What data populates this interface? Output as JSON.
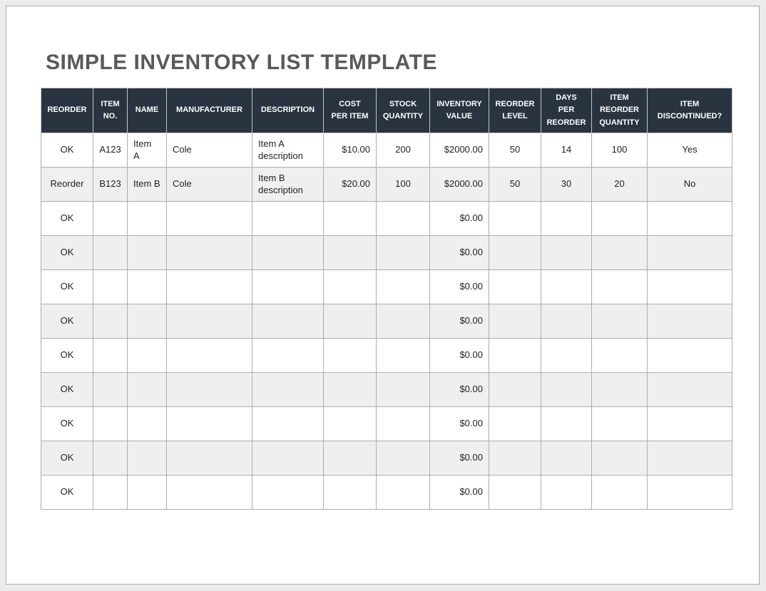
{
  "page": {
    "title": "SIMPLE INVENTORY LIST TEMPLATE"
  },
  "colors": {
    "header_bg": "#2a3441",
    "header_text": "#ffffff",
    "row_stripe": "#efefef",
    "cell_border": "#adadad",
    "title_text": "#595959"
  },
  "table": {
    "columns": [
      {
        "id": "reorder",
        "label": "REORDER",
        "align": "center"
      },
      {
        "id": "item-no",
        "label": "ITEM\nNO.",
        "align": "center"
      },
      {
        "id": "name",
        "label": "NAME",
        "align": "left"
      },
      {
        "id": "manufacturer",
        "label": "MANUFACTURER",
        "align": "left"
      },
      {
        "id": "description",
        "label": "DESCRIPTION",
        "align": "left"
      },
      {
        "id": "cost-per-item",
        "label": "COST\nPER ITEM",
        "align": "right"
      },
      {
        "id": "stock-quantity",
        "label": "STOCK\nQUANTITY",
        "align": "center"
      },
      {
        "id": "inventory-value",
        "label": "INVENTORY\nVALUE",
        "align": "right"
      },
      {
        "id": "reorder-level",
        "label": "REORDER\nLEVEL",
        "align": "center"
      },
      {
        "id": "days-per-reorder",
        "label": "DAYS\nPER\nREORDER",
        "align": "center"
      },
      {
        "id": "item-reorder-quantity",
        "label": "ITEM\nREORDER\nQUANTITY",
        "align": "center"
      },
      {
        "id": "item-discontinued",
        "label": "ITEM\nDISCONTINUED?",
        "align": "center"
      }
    ],
    "rows": [
      [
        "OK",
        "A123",
        "Item\nA",
        "Cole",
        "Item A description",
        "$10.00",
        "200",
        "$2000.00",
        "50",
        "14",
        "100",
        "Yes"
      ],
      [
        "Reorder",
        "B123",
        "Item B",
        "Cole",
        "Item B description",
        "$20.00",
        "100",
        "$2000.00",
        "50",
        "30",
        "20",
        "No"
      ],
      [
        "OK",
        "",
        "",
        "",
        "",
        "",
        "",
        "$0.00",
        "",
        "",
        "",
        ""
      ],
      [
        "OK",
        "",
        "",
        "",
        "",
        "",
        "",
        "$0.00",
        "",
        "",
        "",
        ""
      ],
      [
        "OK",
        "",
        "",
        "",
        "",
        "",
        "",
        "$0.00",
        "",
        "",
        "",
        ""
      ],
      [
        "OK",
        "",
        "",
        "",
        "",
        "",
        "",
        "$0.00",
        "",
        "",
        "",
        ""
      ],
      [
        "OK",
        "",
        "",
        "",
        "",
        "",
        "",
        "$0.00",
        "",
        "",
        "",
        ""
      ],
      [
        "OK",
        "",
        "",
        "",
        "",
        "",
        "",
        "$0.00",
        "",
        "",
        "",
        ""
      ],
      [
        "OK",
        "",
        "",
        "",
        "",
        "",
        "",
        "$0.00",
        "",
        "",
        "",
        ""
      ],
      [
        "OK",
        "",
        "",
        "",
        "",
        "",
        "",
        "$0.00",
        "",
        "",
        "",
        ""
      ],
      [
        "OK",
        "",
        "",
        "",
        "",
        "",
        "",
        "$0.00",
        "",
        "",
        "",
        ""
      ]
    ]
  }
}
